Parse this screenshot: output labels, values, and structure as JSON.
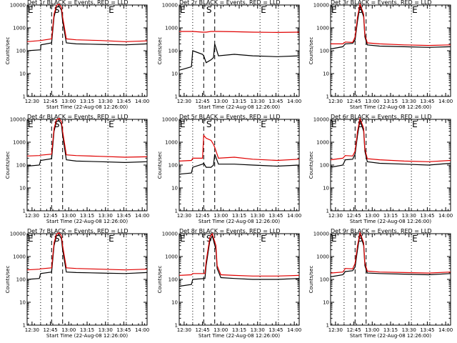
{
  "legend_colors": {
    "events": "#000000",
    "lld": "#e00000"
  },
  "shared": {
    "xlabel": "Start Time (22-Aug-08 12:26:00)",
    "ylabel": "Counts/sec",
    "x_ticks": [
      "12:30",
      "12:45",
      "13:00",
      "13:15",
      "13:30",
      "13:45",
      "14:00"
    ],
    "y_ticks": [
      "1",
      "10",
      "100",
      "1000",
      "10000"
    ],
    "markers": [
      "E",
      "S",
      "E"
    ]
  },
  "chart_data": [
    {
      "type": "line",
      "title": "Det 1r BLACK = Events, RED = LLD",
      "x_minutes": [
        0,
        11,
        11.2,
        20,
        22,
        24,
        26,
        28,
        29,
        32,
        40,
        60,
        80,
        98
      ],
      "series": [
        {
          "name": "Events",
          "values": [
            100,
            110,
            180,
            220,
            3000,
            8000,
            9000,
            6000,
            2000,
            220,
            200,
            190,
            180,
            200
          ]
        },
        {
          "name": "LLD",
          "values": [
            250,
            280,
            280,
            330,
            4000,
            9500,
            11000,
            8000,
            3000,
            330,
            300,
            280,
            250,
            270
          ]
        }
      ],
      "ylim": [
        1,
        10000
      ]
    },
    {
      "type": "line",
      "title": "Det 2r BLACK = Events, RED = LLD",
      "x_minutes": [
        0,
        10,
        11,
        19,
        20,
        22,
        26,
        28,
        29,
        32,
        45,
        60,
        80,
        98
      ],
      "series": [
        {
          "name": "Events",
          "values": [
            14,
            20,
            100,
            70,
            60,
            30,
            40,
            50,
            200,
            60,
            70,
            60,
            55,
            60
          ]
        },
        {
          "name": "LLD",
          "values": [
            700,
            700,
            700,
            650,
            650,
            650,
            700,
            700,
            700,
            700,
            680,
            650,
            630,
            650
          ]
        }
      ],
      "ylim": [
        1,
        10000
      ]
    },
    {
      "type": "line",
      "title": "Det 3r BLACK = Events, RED = LLD",
      "x_minutes": [
        0,
        10,
        12,
        18,
        20,
        22,
        24,
        27,
        28,
        30,
        40,
        60,
        80,
        98
      ],
      "series": [
        {
          "name": "Events",
          "values": [
            120,
            150,
            200,
            210,
            300,
            2000,
            9000,
            3000,
            400,
            180,
            160,
            150,
            140,
            150
          ]
        },
        {
          "name": "LLD",
          "values": [
            200,
            200,
            240,
            230,
            400,
            3000,
            11000,
            4000,
            500,
            220,
            200,
            180,
            170,
            180
          ]
        }
      ],
      "ylim": [
        1,
        10000
      ]
    },
    {
      "type": "line",
      "title": "Det 4r BLACK = Events, RED = LLD",
      "x_minutes": [
        0,
        10,
        11,
        20,
        22,
        24,
        26,
        28,
        29,
        32,
        40,
        60,
        80,
        98
      ],
      "series": [
        {
          "name": "Events",
          "values": [
            90,
            100,
            160,
            190,
            3000,
            8000,
            9000,
            6000,
            2000,
            170,
            150,
            140,
            130,
            140
          ]
        },
        {
          "name": "LLD",
          "values": [
            250,
            260,
            270,
            300,
            4000,
            9500,
            11000,
            8000,
            3000,
            280,
            260,
            240,
            220,
            230
          ]
        }
      ],
      "ylim": [
        1,
        10000
      ]
    },
    {
      "type": "line",
      "title": "Det 5r BLACK = Events, RED = LLD",
      "x_minutes": [
        0,
        10,
        11,
        19,
        20,
        22,
        26,
        28,
        29,
        32,
        45,
        60,
        80,
        98
      ],
      "series": [
        {
          "name": "Events",
          "values": [
            40,
            45,
            80,
            110,
            120,
            80,
            80,
            100,
            300,
            110,
            110,
            100,
            90,
            100
          ]
        },
        {
          "name": "LLD",
          "values": [
            150,
            160,
            200,
            200,
            2000,
            1500,
            1200,
            800,
            600,
            200,
            220,
            180,
            160,
            180
          ]
        }
      ],
      "ylim": [
        1,
        10000
      ]
    },
    {
      "type": "line",
      "title": "Det 6r BLACK = Events, RED = LLD",
      "x_minutes": [
        0,
        10,
        12,
        18,
        20,
        22,
        24,
        27,
        28,
        30,
        40,
        60,
        80,
        98
      ],
      "series": [
        {
          "name": "Events",
          "values": [
            80,
            100,
            170,
            180,
            300,
            2000,
            9000,
            3000,
            400,
            140,
            120,
            110,
            100,
            120
          ]
        },
        {
          "name": "LLD",
          "values": [
            170,
            200,
            260,
            250,
            400,
            3000,
            11000,
            4000,
            500,
            190,
            170,
            150,
            140,
            160
          ]
        }
      ],
      "ylim": [
        1,
        10000
      ]
    },
    {
      "type": "line",
      "title": "Det 7r BLACK = Events, RED = LLD",
      "x_minutes": [
        0,
        10,
        11,
        20,
        22,
        24,
        26,
        28,
        29,
        32,
        40,
        60,
        80,
        98
      ],
      "series": [
        {
          "name": "Events",
          "values": [
            100,
            110,
            180,
            210,
            3000,
            8000,
            9000,
            6000,
            2000,
            210,
            200,
            190,
            180,
            200
          ]
        },
        {
          "name": "LLD",
          "values": [
            260,
            280,
            290,
            320,
            4000,
            9500,
            11000,
            8000,
            3000,
            320,
            300,
            280,
            260,
            280
          ]
        }
      ],
      "ylim": [
        1,
        10000
      ]
    },
    {
      "type": "line",
      "title": "Det 8r BLACK = Events, RED = LLD",
      "x_minutes": [
        0,
        10,
        11,
        21,
        22,
        25,
        27,
        30,
        31,
        34,
        45,
        60,
        80,
        98
      ],
      "series": [
        {
          "name": "Events",
          "values": [
            50,
            60,
            100,
            110,
            400,
            5000,
            8000,
            2000,
            300,
            120,
            110,
            100,
            100,
            110
          ]
        },
        {
          "name": "LLD",
          "values": [
            150,
            160,
            180,
            180,
            600,
            7000,
            10000,
            3000,
            400,
            160,
            150,
            140,
            140,
            150
          ]
        }
      ],
      "ylim": [
        1,
        10000
      ]
    },
    {
      "type": "line",
      "title": "Det 9r BLACK = Events, RED = LLD",
      "x_minutes": [
        0,
        10,
        12,
        18,
        20,
        22,
        24,
        27,
        28,
        30,
        40,
        60,
        80,
        98
      ],
      "series": [
        {
          "name": "Events",
          "values": [
            130,
            160,
            220,
            240,
            350,
            2000,
            10000,
            3000,
            400,
            190,
            180,
            170,
            160,
            180
          ]
        },
        {
          "name": "LLD",
          "values": [
            190,
            210,
            300,
            290,
            500,
            3000,
            11000,
            4000,
            500,
            230,
            210,
            200,
            190,
            210
          ]
        }
      ],
      "ylim": [
        1,
        10000
      ]
    }
  ]
}
